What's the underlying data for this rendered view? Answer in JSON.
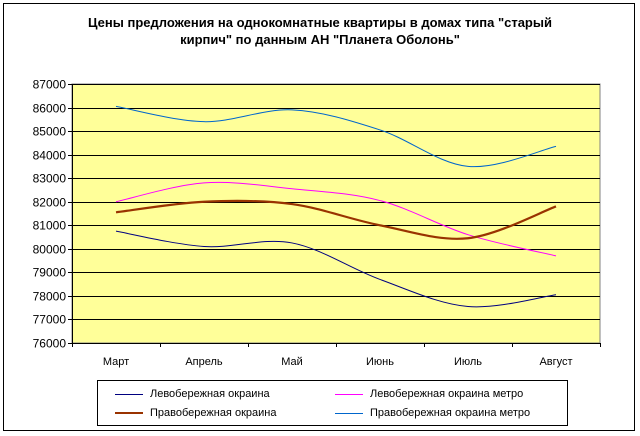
{
  "chart_data": {
    "type": "line",
    "title": "Цены предложения на однокомнатные квартиры в домах типа \"старый кирпич\" по данным АН \"Планета Оболонь\"",
    "title_lines": [
      "Цены предложения на однокомнатные квартиры в домах типа \"старый",
      "кирпич\" по данным АН \"Планета Оболонь\""
    ],
    "categories": [
      "Март",
      "Апрель",
      "Май",
      "Июнь",
      "Июль",
      "Август"
    ],
    "ylim": [
      76000,
      87000
    ],
    "yticks": [
      "76000",
      "77000",
      "78000",
      "79000",
      "80000",
      "81000",
      "82000",
      "83000",
      "84000",
      "85000",
      "86000",
      "87000"
    ],
    "grid": true,
    "plot_background": "#ffff99",
    "legend_position": "bottom",
    "smooth": true,
    "series": [
      {
        "name": "Левобережная окраина",
        "color": "#000080",
        "width": 1,
        "values": [
          80750,
          80100,
          80250,
          78700,
          77550,
          78050
        ]
      },
      {
        "name": "Левобережная окраина метро",
        "color": "#ff00ff",
        "width": 1,
        "values": [
          82000,
          82800,
          82550,
          82050,
          80600,
          79700
        ]
      },
      {
        "name": "Правобережная окраина",
        "color": "#993300",
        "width": 2.2,
        "values": [
          81550,
          82000,
          81900,
          81000,
          80450,
          81800
        ]
      },
      {
        "name": "Правобережная окраина метро",
        "color": "#0066cc",
        "width": 1,
        "values": [
          86050,
          85400,
          85900,
          85050,
          83500,
          84350
        ]
      }
    ]
  }
}
